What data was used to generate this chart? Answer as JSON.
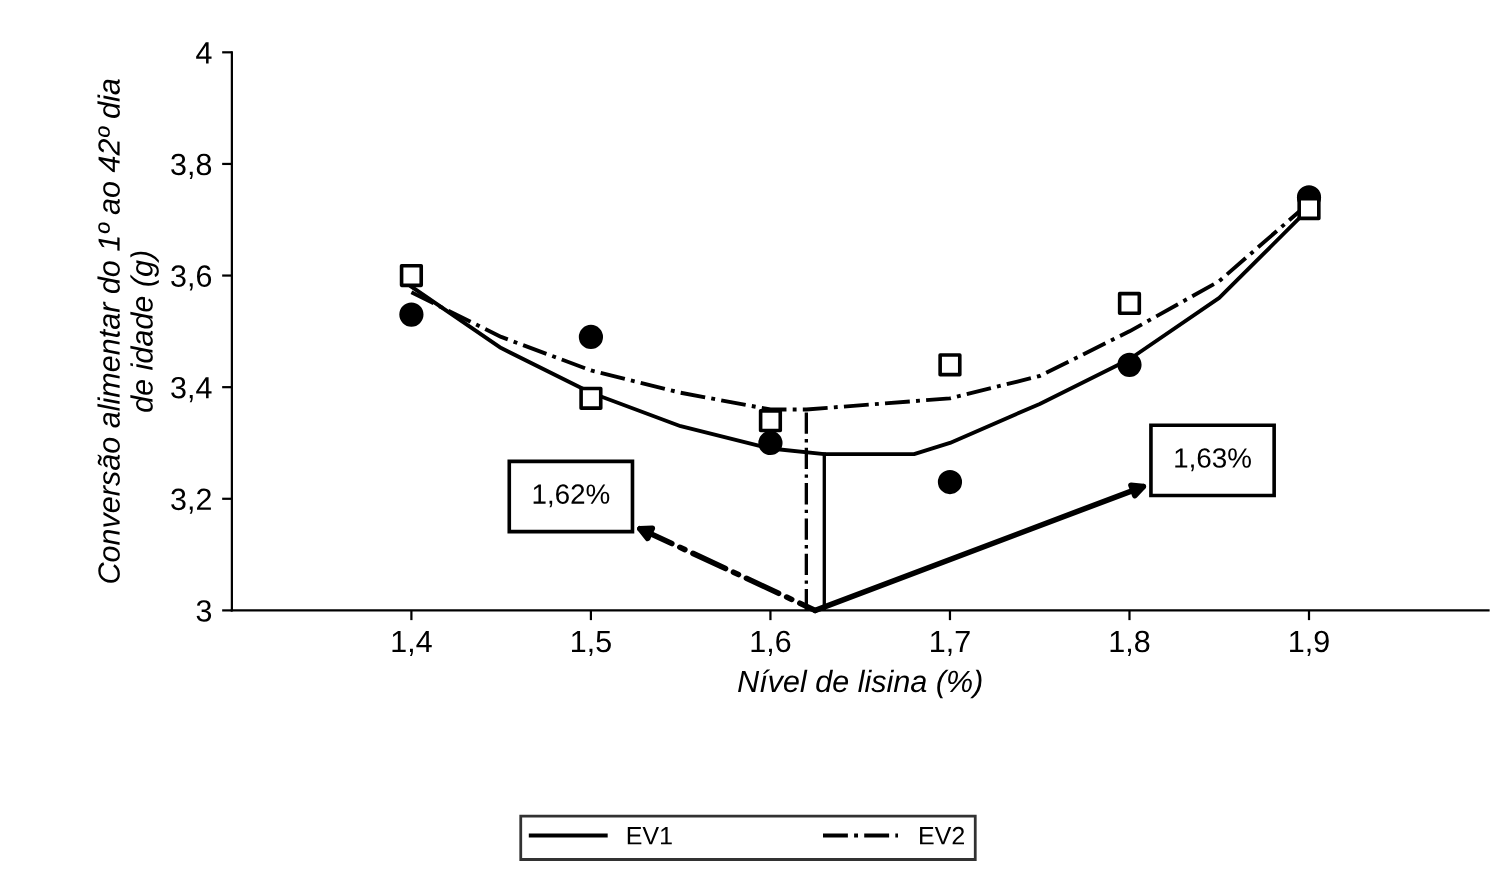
{
  "chart_data": {
    "type": "scatter",
    "xlabel": "Nível de lisina (%)",
    "ylabel": "Conversão alimentar do 1º ao 42º dia\nde idade (g)",
    "xlim": [
      1.3,
      2.0
    ],
    "xticks": [
      {
        "value": 1.4,
        "label": "1,4"
      },
      {
        "value": 1.5,
        "label": "1,5"
      },
      {
        "value": 1.6,
        "label": "1,6"
      },
      {
        "value": 1.7,
        "label": "1,7"
      },
      {
        "value": 1.8,
        "label": "1,8"
      },
      {
        "value": 1.9,
        "label": "1,9"
      }
    ],
    "ylim": [
      3,
      4
    ],
    "yticks": [
      {
        "value": 3,
        "label": "3"
      },
      {
        "value": 3.2,
        "label": "3,2"
      },
      {
        "value": 3.4,
        "label": "3,4"
      },
      {
        "value": 3.6,
        "label": "3,6"
      },
      {
        "value": 3.8,
        "label": "3,8"
      },
      {
        "value": 4,
        "label": "4"
      }
    ],
    "grid": false,
    "legend": "bottom",
    "series": [
      {
        "marker": "circle",
        "color": "#000000",
        "x": [
          1.4,
          1.5,
          1.6,
          1.7,
          1.8,
          1.9
        ],
        "values": [
          3.53,
          3.49,
          3.3,
          3.23,
          3.44,
          3.74
        ]
      },
      {
        "marker": "square",
        "color": "#000000",
        "x": [
          1.4,
          1.5,
          1.6,
          1.7,
          1.8,
          1.9
        ],
        "values": [
          3.6,
          3.38,
          3.34,
          3.44,
          3.55,
          3.72
        ]
      },
      {
        "type": "line",
        "name": "EV1",
        "line_style": "solid",
        "color": "#000000",
        "x": [
          1.4,
          1.45,
          1.5,
          1.55,
          1.6,
          1.63,
          1.68,
          1.7,
          1.75,
          1.8,
          1.85,
          1.9
        ],
        "values": [
          3.58,
          3.47,
          3.39,
          3.33,
          3.29,
          3.28,
          3.28,
          3.3,
          3.37,
          3.45,
          3.56,
          3.72
        ]
      },
      {
        "type": "line",
        "name": "EV2",
        "line_style": "dashdot",
        "color": "#000000",
        "x": [
          1.4,
          1.45,
          1.5,
          1.55,
          1.6,
          1.62,
          1.7,
          1.75,
          1.8,
          1.85,
          1.9
        ],
        "values": [
          3.57,
          3.49,
          3.43,
          3.39,
          3.36,
          3.36,
          3.38,
          3.42,
          3.5,
          3.59,
          3.73
        ]
      }
    ],
    "ref_lines": [
      {
        "axis": "x",
        "value": 1.62,
        "line_style": "dashdot",
        "color": "#000000"
      },
      {
        "axis": "x",
        "value": 1.63,
        "line_style": "solid",
        "color": "#000000"
      }
    ],
    "annotations": [
      "1,62%",
      "1,63%"
    ]
  }
}
